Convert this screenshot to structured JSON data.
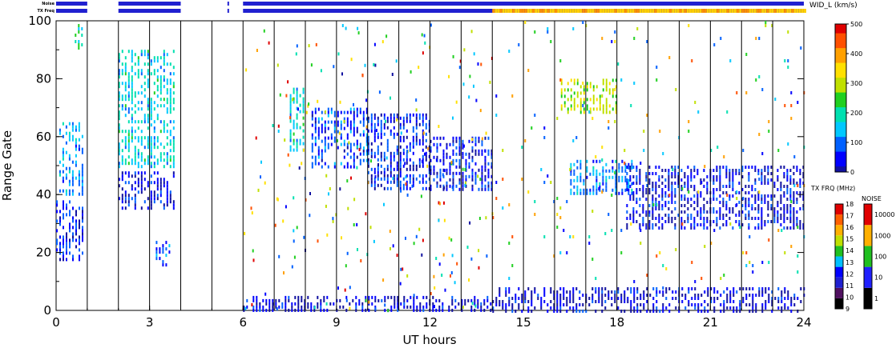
{
  "chart_data": {
    "type": "heatmap",
    "xlabel": "UT hours",
    "ylabel": "Range Gate",
    "xlim": [
      0,
      24
    ],
    "ylim": [
      0,
      100
    ],
    "xticks": [
      "0",
      "3",
      "6",
      "9",
      "12",
      "15",
      "18",
      "21",
      "24"
    ],
    "xtick_values": [
      0,
      3,
      6,
      9,
      12,
      15,
      18,
      21,
      24
    ],
    "yticks": [
      "0",
      "20",
      "40",
      "60",
      "80",
      "100"
    ],
    "ytick_values": [
      0,
      20,
      40,
      60,
      80,
      100
    ],
    "scan_boundaries_hr": [
      1,
      2,
      3,
      4,
      5,
      6,
      7,
      8,
      9,
      10,
      11,
      12,
      13,
      14,
      15,
      16,
      17,
      18,
      19,
      20,
      21,
      22,
      23,
      24
    ],
    "data_gap_hr": [
      [
        1.0,
        2.0
      ],
      [
        4.0,
        6.0
      ]
    ],
    "regions": [
      {
        "x": [
          0.0,
          0.9
        ],
        "y": [
          18,
          38
        ],
        "width_kms": 60
      },
      {
        "x": [
          0.1,
          0.9
        ],
        "y": [
          40,
          65
        ],
        "width_kms": 130
      },
      {
        "x": [
          0.6,
          0.85
        ],
        "y": [
          90,
          100
        ],
        "width_kms": 200
      },
      {
        "x": [
          2.0,
          3.8
        ],
        "y": [
          35,
          48
        ],
        "width_kms": 40
      },
      {
        "x": [
          2.0,
          3.8
        ],
        "y": [
          50,
          90
        ],
        "width_kms": 170
      },
      {
        "x": [
          3.2,
          3.7
        ],
        "y": [
          16,
          24
        ],
        "width_kms": 90
      },
      {
        "x": [
          7.5,
          8.0
        ],
        "y": [
          55,
          78
        ],
        "width_kms": 180
      },
      {
        "x": [
          8.2,
          10.0
        ],
        "y": [
          50,
          70
        ],
        "width_kms": 80
      },
      {
        "x": [
          10.0,
          12.0
        ],
        "y": [
          42,
          68
        ],
        "width_kms": 60
      },
      {
        "x": [
          12.0,
          14.0
        ],
        "y": [
          42,
          60
        ],
        "width_kms": 50
      },
      {
        "x": [
          6.0,
          14.0
        ],
        "y": [
          0,
          5
        ],
        "width_kms": 20
      },
      {
        "x": [
          14.0,
          24.0
        ],
        "y": [
          0,
          8
        ],
        "width_kms": 30
      },
      {
        "x": [
          16.2,
          18.0
        ],
        "y": [
          68,
          80
        ],
        "width_kms": 300
      },
      {
        "x": [
          16.5,
          18.5
        ],
        "y": [
          40,
          52
        ],
        "width_kms": 120
      },
      {
        "x": [
          18.3,
          24.0
        ],
        "y": [
          28,
          50
        ],
        "width_kms": 40
      },
      {
        "x": [
          14.0,
          24.0
        ],
        "y": [
          8,
          100
        ],
        "width_kms": 250
      }
    ],
    "colorbar_width": {
      "label": "WID_L (km/s)",
      "ticks": [
        "0",
        "100",
        "200",
        "300",
        "400",
        "500"
      ],
      "range": [
        0,
        500
      ]
    },
    "colorbar_txfreq": {
      "label": "TX FRQ (MHz)",
      "ticks": [
        "9",
        "10",
        "11",
        "12",
        "13",
        "14",
        "15",
        "16",
        "17",
        "18"
      ]
    },
    "colorbar_noise": {
      "label": "NOISE",
      "ticks": [
        "1",
        "10",
        "100",
        "1000",
        "10000"
      ]
    },
    "strip_labels": {
      "noise": "Noise",
      "txfreq": "TX Freq"
    },
    "colors": {
      "scale": [
        "#1010a0",
        "#0000ff",
        "#0060ff",
        "#00c8ff",
        "#00e0b0",
        "#20d020",
        "#c0e000",
        "#ffe000",
        "#ffa000",
        "#ff5000",
        "#e00000"
      ],
      "txfreq_scale": [
        "#000000",
        "#501060",
        "#2020d0",
        "#0000ff",
        "#00c0ff",
        "#20c020",
        "#c0e000",
        "#ffb000",
        "#ff6000",
        "#e00000"
      ],
      "noise_scale": [
        "#000000",
        "#2020ff",
        "#20c020",
        "#ffb000",
        "#e00000"
      ],
      "strip_blue": "#2020d0",
      "strip_yellow": "#ffd000",
      "strip_orange": "#ff9000"
    }
  }
}
